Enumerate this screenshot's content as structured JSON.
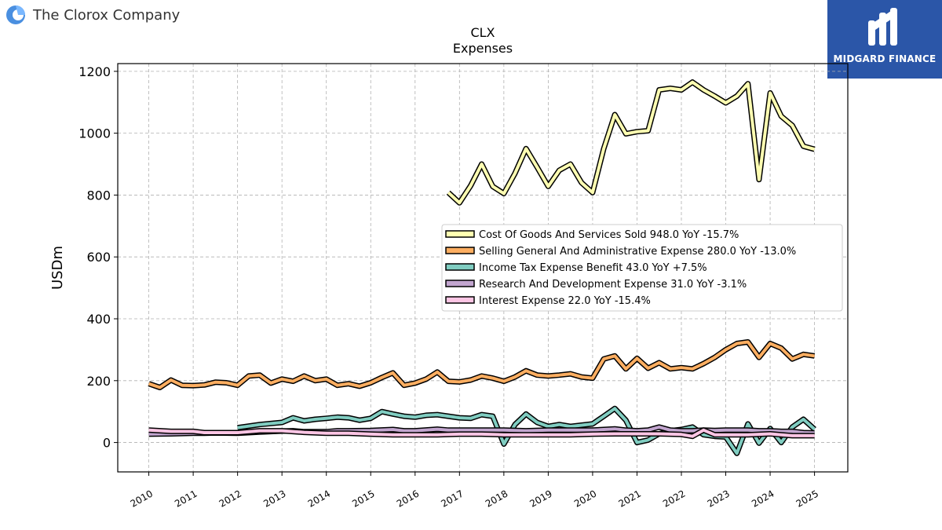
{
  "header": {
    "company": "The Clorox Company",
    "logo_icon": "clorox-c-icon",
    "badge_icon": "midgard-m-icon",
    "badge_text": "MIDGARD FINANCE",
    "badge_color": "#2b56a8"
  },
  "chart_data": {
    "type": "line",
    "title": "CLX",
    "subtitle": "Expenses",
    "xlabel": "",
    "ylabel": "USDm",
    "xlim": [
      2009.3,
      2025.75
    ],
    "ylim": [
      -95,
      1225
    ],
    "yticks": [
      0,
      200,
      400,
      600,
      800,
      1000,
      1200
    ],
    "xticks": [
      "2010",
      "2011",
      "2012",
      "2013",
      "2014",
      "2015",
      "2016",
      "2017",
      "2018",
      "2019",
      "2020",
      "2021",
      "2022",
      "2023",
      "2024",
      "2025"
    ],
    "grid": true,
    "legend_position": "center-right",
    "series": [
      {
        "name": "Cost Of Goods And Services Sold",
        "legend": "Cost Of Goods And Services Sold  948.0 YoY -15.7%",
        "color": "#ffffb2",
        "x": [
          2016.75,
          2017.0,
          2017.25,
          2017.5,
          2017.75,
          2018.0,
          2018.25,
          2018.5,
          2018.75,
          2019.0,
          2019.25,
          2019.5,
          2019.75,
          2020.0,
          2020.25,
          2020.5,
          2020.75,
          2021.0,
          2021.25,
          2021.5,
          2021.75,
          2022.0,
          2022.25,
          2022.5,
          2022.75,
          2023.0,
          2023.25,
          2023.5,
          2023.75,
          2024.0,
          2024.25,
          2024.5,
          2024.75,
          2025.0
        ],
        "y": [
          808,
          775,
          830,
          900,
          828,
          805,
          870,
          950,
          890,
          828,
          880,
          900,
          840,
          808,
          950,
          1060,
          998,
          1005,
          1008,
          1140,
          1145,
          1140,
          1165,
          1140,
          1120,
          1098,
          1120,
          1160,
          850,
          1130,
          1055,
          1025,
          958,
          948
        ]
      },
      {
        "name": "Selling General And Administrative Expense",
        "legend": "Selling General And Administrative Expense  280.0 YoY -13.0%",
        "color": "#fdae61",
        "x": [
          2010.0,
          2010.25,
          2010.5,
          2010.75,
          2011.0,
          2011.25,
          2011.5,
          2011.75,
          2012.0,
          2012.25,
          2012.5,
          2012.75,
          2013.0,
          2013.25,
          2013.5,
          2013.75,
          2014.0,
          2014.25,
          2014.5,
          2014.75,
          2015.0,
          2015.25,
          2015.5,
          2015.75,
          2016.0,
          2016.25,
          2016.5,
          2016.75,
          2017.0,
          2017.25,
          2017.5,
          2017.75,
          2018.0,
          2018.25,
          2018.5,
          2018.75,
          2019.0,
          2019.25,
          2019.5,
          2019.75,
          2020.0,
          2020.25,
          2020.5,
          2020.75,
          2021.0,
          2021.25,
          2021.5,
          2021.75,
          2022.0,
          2022.25,
          2022.5,
          2022.75,
          2023.0,
          2023.25,
          2023.5,
          2023.75,
          2024.0,
          2024.25,
          2024.5,
          2024.75,
          2025.0
        ],
        "y": [
          190,
          178,
          202,
          185,
          184,
          186,
          195,
          193,
          185,
          215,
          218,
          192,
          205,
          198,
          215,
          200,
          205,
          185,
          190,
          182,
          193,
          210,
          225,
          185,
          192,
          205,
          228,
          198,
          196,
          202,
          215,
          208,
          198,
          212,
          232,
          218,
          215,
          218,
          222,
          212,
          208,
          270,
          280,
          238,
          272,
          240,
          258,
          238,
          242,
          238,
          255,
          275,
          300,
          320,
          325,
          275,
          320,
          305,
          270,
          285,
          280
        ]
      },
      {
        "name": "Income Tax Expense Benefit",
        "legend": "Income Tax Expense Benefit  43.0 YoY +7.5%",
        "color": "#80cdc1",
        "x": [
          2012.0,
          2012.5,
          2013.0,
          2013.25,
          2013.5,
          2013.75,
          2014.0,
          2014.25,
          2014.5,
          2014.75,
          2015.0,
          2015.25,
          2015.5,
          2015.75,
          2016.0,
          2016.25,
          2016.5,
          2016.75,
          2017.0,
          2017.25,
          2017.5,
          2017.75,
          2018.0,
          2018.25,
          2018.5,
          2018.75,
          2019.0,
          2019.25,
          2019.5,
          2019.75,
          2020.0,
          2020.25,
          2020.5,
          2020.75,
          2021.0,
          2021.25,
          2021.5,
          2021.75,
          2022.0,
          2022.25,
          2022.5,
          2022.75,
          2023.0,
          2023.25,
          2023.5,
          2023.75,
          2024.0,
          2024.25,
          2024.5,
          2024.75,
          2025.0
        ],
        "y": [
          48,
          58,
          65,
          80,
          70,
          75,
          78,
          82,
          80,
          72,
          78,
          100,
          92,
          85,
          82,
          88,
          90,
          85,
          80,
          78,
          90,
          85,
          -5,
          58,
          92,
          65,
          52,
          58,
          52,
          56,
          60,
          85,
          110,
          72,
          0,
          8,
          28,
          38,
          42,
          50,
          25,
          20,
          18,
          -35,
          60,
          -2,
          45,
          0,
          50,
          75,
          43
        ]
      },
      {
        "name": "Research And Development Expense",
        "legend": "Research And Development Expense  31.0 YoY -3.1%",
        "color": "#c2a5cf",
        "x": [
          2010.0,
          2010.5,
          2011.0,
          2011.25,
          2011.5,
          2012.0,
          2012.5,
          2013.0,
          2013.25,
          2013.5,
          2014.0,
          2014.25,
          2014.5,
          2015.0,
          2015.5,
          2015.75,
          2016.0,
          2016.5,
          2016.75,
          2017.0,
          2017.5,
          2018.0,
          2018.5,
          2019.0,
          2019.5,
          2020.0,
          2020.5,
          2020.75,
          2021.0,
          2021.25,
          2021.5,
          2021.75,
          2022.0,
          2022.25,
          2022.5,
          2022.75,
          2023.0,
          2023.25,
          2023.5,
          2023.75,
          2024.0,
          2024.25,
          2024.5,
          2024.75,
          2025.0
        ],
        "y": [
          27,
          28,
          30,
          30,
          31,
          30,
          34,
          37,
          38,
          35,
          35,
          38,
          38,
          39,
          42,
          38,
          38,
          43,
          40,
          40,
          40,
          40,
          38,
          40,
          40,
          40,
          44,
          40,
          38,
          40,
          50,
          40,
          38,
          38,
          40,
          39,
          40,
          40,
          40,
          38,
          38,
          36,
          36,
          32,
          31
        ]
      },
      {
        "name": "Interest Expense",
        "legend": "Interest Expense  22.0 YoY -15.4%",
        "color": "#fcc5e4",
        "x": [
          2010.0,
          2010.5,
          2011.0,
          2011.25,
          2011.5,
          2012.0,
          2012.5,
          2013.0,
          2013.5,
          2014.0,
          2014.5,
          2015.0,
          2015.5,
          2016.0,
          2016.5,
          2017.0,
          2017.5,
          2018.0,
          2018.25,
          2018.5,
          2019.0,
          2019.5,
          2020.0,
          2020.5,
          2021.0,
          2021.5,
          2022.0,
          2022.25,
          2022.5,
          2022.75,
          2023.0,
          2023.5,
          2024.0,
          2024.25,
          2024.5,
          2024.75,
          2025.0
        ],
        "y": [
          40,
          36,
          36,
          32,
          32,
          32,
          38,
          38,
          33,
          30,
          30,
          27,
          25,
          25,
          25,
          27,
          27,
          25,
          25,
          25,
          25,
          25,
          27,
          28,
          28,
          28,
          26,
          20,
          40,
          25,
          25,
          25,
          28,
          25,
          22,
          22,
          22
        ]
      }
    ]
  }
}
